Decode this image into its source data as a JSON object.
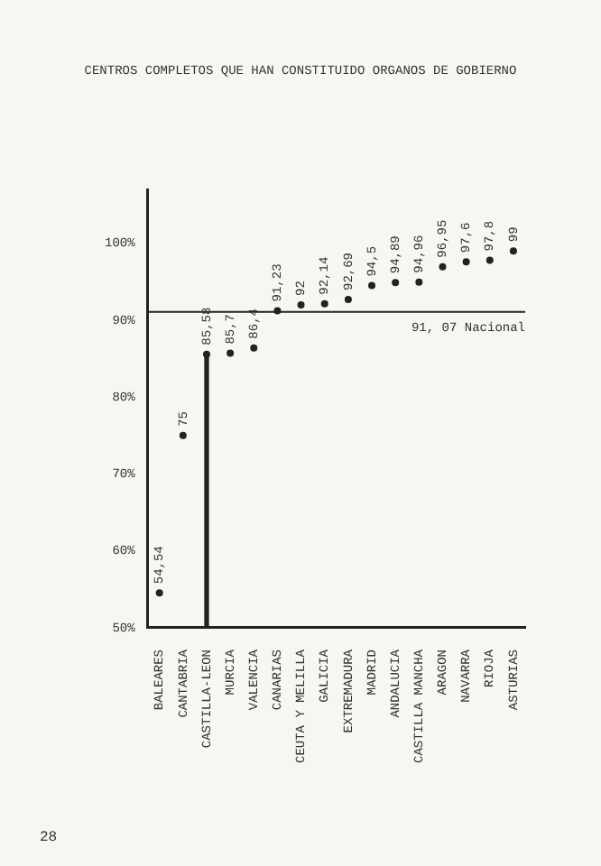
{
  "chart_data": {
    "type": "scatter",
    "title": "CENTROS COMPLETOS QUE HAN CONSTITUIDO ORGANOS DE GOBIERNO",
    "categories": [
      "BALEARES",
      "CANTABRIA",
      "CASTILLA-LEON",
      "MURCIA",
      "VALENCIA",
      "CANARIAS",
      "CEUTA Y MELILLA",
      "GALICIA",
      "EXTREMADURA",
      "MADRID",
      "ANDALUCIA",
      "CASTILLA MANCHA",
      "ARAGON",
      "NAVARRA",
      "RIOJA",
      "ASTURIAS"
    ],
    "series": [
      {
        "color": "#222222",
        "values": [
          54.54,
          75,
          85.58,
          85.7,
          86.4,
          91.23,
          92,
          92.14,
          92.69,
          94.5,
          94.89,
          94.96,
          96.95,
          97.6,
          97.8,
          99
        ],
        "value_labels": [
          "54,54",
          "75",
          "85,58",
          "85,7",
          "86,4",
          "91,23",
          "92",
          "92,14",
          "92,69",
          "94,5",
          "94,89",
          "94,96",
          "96,95",
          "97,6",
          "97,8",
          "99"
        ]
      },
      {
        "type": "bar",
        "color": "#222222",
        "values": [
          null,
          null,
          85.58,
          null,
          null,
          null,
          null,
          null,
          null,
          null,
          null,
          null,
          null,
          null,
          null,
          null
        ]
      }
    ],
    "ylim": [
      50,
      107
    ],
    "yticks": [
      {
        "value": 50,
        "label": "50%"
      },
      {
        "value": 60,
        "label": "60%"
      },
      {
        "value": 70,
        "label": "70%"
      },
      {
        "value": 80,
        "label": "80%"
      },
      {
        "value": 90,
        "label": "90%"
      },
      {
        "value": 100,
        "label": "100%"
      }
    ],
    "ref_lines": [
      {
        "axis": "y",
        "value": 91.07,
        "label": "91, 07 Nacional",
        "color": "#222222"
      }
    ],
    "annotations": [
      "28"
    ]
  }
}
